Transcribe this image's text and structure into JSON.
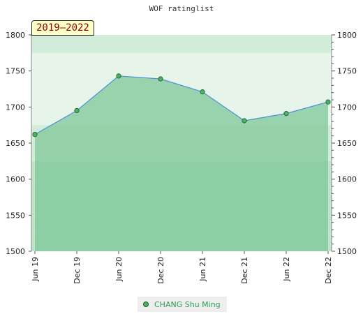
{
  "chart_data": {
    "type": "area",
    "title": "WOF ratinglist",
    "period_label": "2019–2022",
    "x": [
      "Jun 19",
      "Dec 19",
      "Jun 20",
      "Dec 20",
      "Jun 21",
      "Dec 21",
      "Jun 22",
      "Dec 22"
    ],
    "series": [
      {
        "name": "CHANG Shu Ming",
        "values": [
          1662,
          1695,
          1743,
          1739,
          1721,
          1681,
          1691,
          1707
        ]
      }
    ],
    "ylim": [
      1500,
      1800
    ],
    "y_ticks": [
      1500,
      1550,
      1600,
      1650,
      1700,
      1750,
      1800
    ],
    "grid": true,
    "legend_position": "bottom-center",
    "colors": {
      "line": "#4a90d9",
      "fill": "#7fc898",
      "marker": "#4caf6a",
      "band_dark": "#bfe2c9",
      "band_light": "#e6f4ea"
    }
  }
}
